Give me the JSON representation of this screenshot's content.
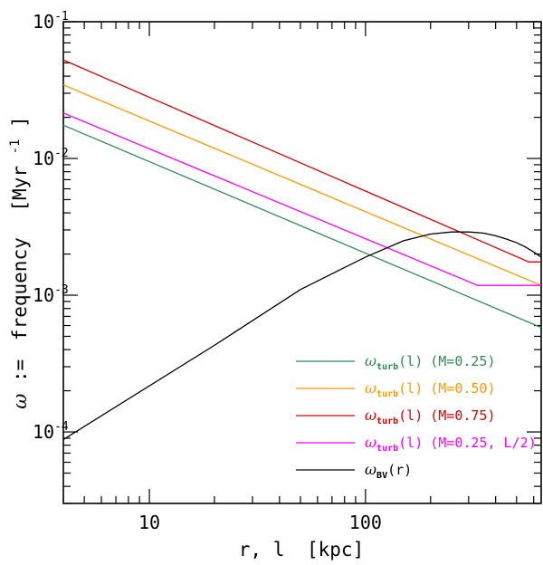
{
  "chart_data": {
    "type": "line",
    "x_scale": "log",
    "y_scale": "log",
    "xlim": [
      4,
      650
    ],
    "ylim": [
      3e-05,
      0.1
    ],
    "xlabel": {
      "prefix": "r, l",
      "unit": "[kpc]"
    },
    "ylabel": {
      "symbol": "ω",
      "assign": ":=",
      "word": "frequency",
      "unit_open": "[Myr",
      "unit_exp": "-1",
      "unit_close": "]"
    },
    "x_ticks": [
      {
        "value": 10,
        "label": "10"
      },
      {
        "value": 100,
        "label": "100"
      }
    ],
    "y_ticks": [
      {
        "value": 0.0001,
        "base": "10",
        "exp": "-4"
      },
      {
        "value": 0.001,
        "base": "10",
        "exp": "-3"
      },
      {
        "value": 0.01,
        "base": "10",
        "exp": "-2"
      },
      {
        "value": 0.1,
        "base": "10",
        "exp": "-1"
      }
    ],
    "series": [
      {
        "name": "turb_M025",
        "color": "#2e8b57",
        "label": {
          "sym": "ω",
          "sub": "turb",
          "arg": "(l)",
          "param": "(M=0.25)"
        },
        "x": [
          4,
          650
        ],
        "y": [
          0.0175,
          0.00058
        ]
      },
      {
        "name": "turb_M050",
        "color": "#ff9900",
        "label": {
          "sym": "ω",
          "sub": "turb",
          "arg": "(l)",
          "param": "(M=0.50)"
        },
        "x": [
          4,
          650
        ],
        "y": [
          0.0345,
          0.00118
        ]
      },
      {
        "name": "turb_M075",
        "color": "#dd0000",
        "label": {
          "sym": "ω",
          "sub": "turb",
          "arg": "(l)",
          "param": "(M=0.75)"
        },
        "x": [
          4,
          570,
          650
        ],
        "y": [
          0.0525,
          0.00175,
          0.00175
        ]
      },
      {
        "name": "turb_M025_L2",
        "color": "#ff00ff",
        "label": {
          "sym": "ω",
          "sub": "turb",
          "arg": "(l)",
          "param": "(M=0.25, L/2)"
        },
        "x": [
          4,
          330,
          650
        ],
        "y": [
          0.0215,
          0.00118,
          0.00118
        ]
      },
      {
        "name": "BV",
        "color": "#000000",
        "label": {
          "sym": "ω",
          "sub": "BV",
          "arg": "(r)",
          "param": ""
        },
        "x": [
          4,
          20,
          50,
          100,
          150,
          200,
          250,
          300,
          350,
          400,
          450,
          500,
          550,
          600,
          650
        ],
        "y": [
          8.8e-05,
          0.00043,
          0.0011,
          0.0019,
          0.0025,
          0.0028,
          0.0029,
          0.0029,
          0.00285,
          0.00272,
          0.00257,
          0.00242,
          0.00225,
          0.00207,
          0.0019
        ]
      }
    ],
    "legend_position": "bottom-right"
  }
}
